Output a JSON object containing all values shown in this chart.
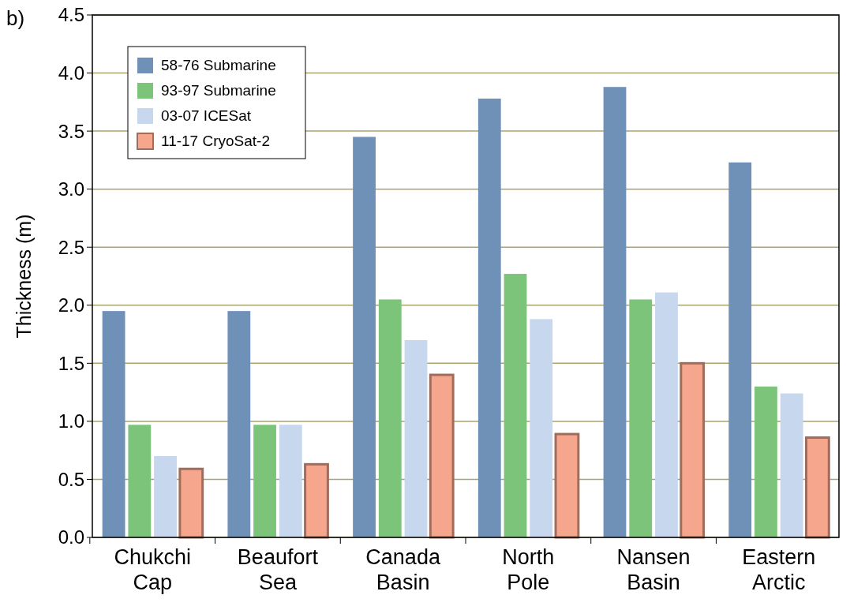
{
  "chart_data": {
    "type": "bar",
    "categories": [
      "Chukchi\nCap",
      "Beaufort\nSea",
      "Canada\nBasin",
      "North\nPole",
      "Nansen\nBasin",
      "Eastern\nArctic"
    ],
    "series": [
      {
        "name": "58-76 Submarine",
        "color": "#6f90b7",
        "values": [
          1.95,
          1.95,
          3.45,
          3.78,
          3.88,
          3.23
        ]
      },
      {
        "name": "93-97 Submarine",
        "color": "#7cc47a",
        "values": [
          0.97,
          0.97,
          2.05,
          2.27,
          2.05,
          1.3
        ]
      },
      {
        "name": "03-07 ICESat",
        "color": "#c6d7ee",
        "values": [
          0.7,
          0.97,
          1.7,
          1.88,
          2.11,
          1.24
        ]
      },
      {
        "name": "11-17 CryoSat-2",
        "color": "#f5a68c",
        "values": [
          0.59,
          0.63,
          1.4,
          0.89,
          1.5,
          0.86
        ]
      }
    ],
    "ylabel": "Thickness (m)",
    "annotations": [
      "b)"
    ],
    "ylim": [
      0,
      4.5
    ],
    "yticks": [
      {
        "value": 0,
        "label": "0.0"
      },
      {
        "value": 0.5,
        "label": "0.5"
      },
      {
        "value": 1,
        "label": "1.0"
      },
      {
        "value": 1.5,
        "label": "1.5"
      },
      {
        "value": 2,
        "label": "2.0"
      },
      {
        "value": 2.5,
        "label": "2.5"
      },
      {
        "value": 3,
        "label": "3.0"
      },
      {
        "value": 3.5,
        "label": "3.5"
      },
      {
        "value": 4,
        "label": "4.0"
      },
      {
        "value": 4.5,
        "label": "4.5"
      }
    ],
    "grid": "y",
    "legend": "top left"
  }
}
